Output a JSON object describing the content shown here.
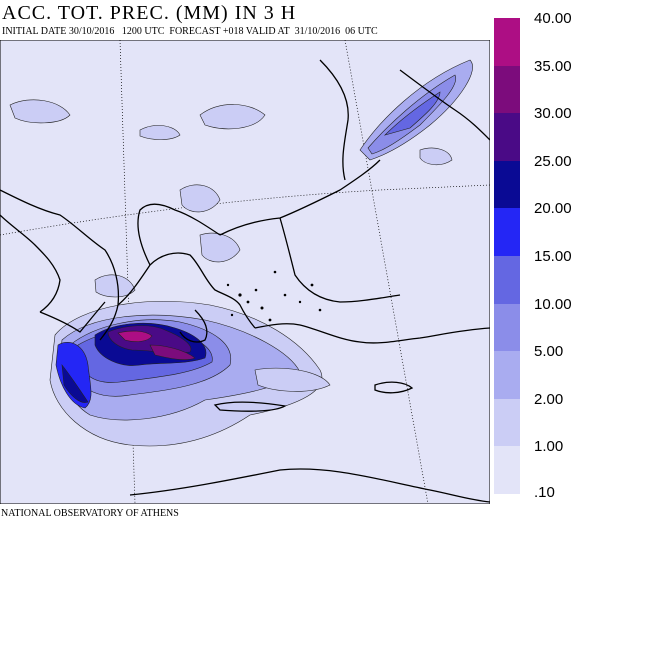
{
  "title": "ACC. TOT. PREC. (MM) IN 3 H",
  "subtitle": "INITIAL DATE 30/10/2016   1200 UTC  FORECAST +018 VALID AT  31/10/2016  06 UTC",
  "credit": "NATIONAL OBSERVATORY OF ATHENS",
  "legend": {
    "levels": [
      ".10",
      "1.00",
      "2.00",
      "5.00",
      "10.00",
      "15.00",
      "20.00",
      "25.00",
      "30.00",
      "35.00",
      "40.00"
    ],
    "colors": [
      "#e3e4f8",
      "#cbcdf5",
      "#a9acf0",
      "#8b8de9",
      "#6467e2",
      "#2426f5",
      "#0a0a94",
      "#4a0a86",
      "#7c0c7c",
      "#ad0e84"
    ]
  }
}
